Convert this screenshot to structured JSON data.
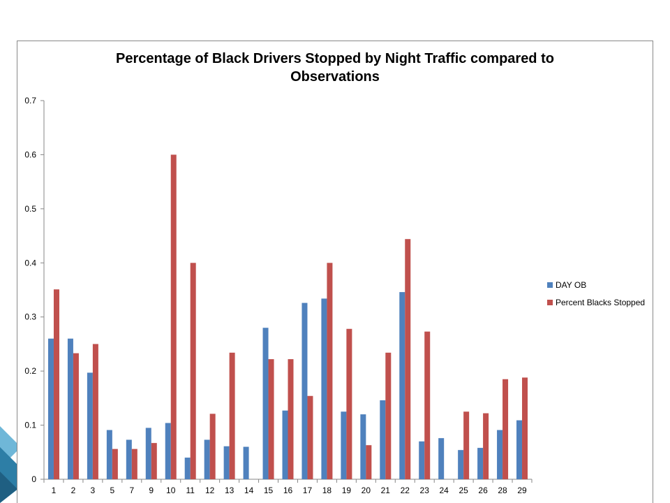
{
  "colors": {
    "day_ob": "#4f81bd",
    "percent_blacks_stopped": "#c0504d",
    "axis": "#868686",
    "deco_light": "#6fb7d8",
    "deco_dark": "#2d7ea6"
  },
  "chart_data": {
    "type": "bar",
    "title_lines": [
      "Percentage of Black Drivers Stopped by Night Traffic compared to",
      "Observations"
    ],
    "xlabel": "",
    "ylabel": "",
    "ylim": [
      0,
      0.7
    ],
    "yticks": [
      "0",
      "0.1",
      "0.2",
      "0.3",
      "0.4",
      "0.5",
      "0.6",
      "0.7"
    ],
    "grid": false,
    "legend_position": "right",
    "categories": [
      "1",
      "2",
      "3",
      "5",
      "7",
      "9",
      "10",
      "11",
      "12",
      "13",
      "14",
      "15",
      "16",
      "17",
      "18",
      "19",
      "20",
      "21",
      "22",
      "23",
      "24",
      "25",
      "26",
      "28",
      "29"
    ],
    "series": [
      {
        "name": "DAY OB",
        "color": "#4f81bd",
        "values": [
          0.26,
          0.26,
          0.197,
          0.091,
          0.073,
          0.095,
          0.104,
          0.04,
          0.073,
          0.061,
          0.06,
          0.28,
          0.127,
          0.326,
          0.334,
          0.125,
          0.12,
          0.146,
          0.346,
          0.07,
          0.076,
          0.054,
          0.058,
          0.091,
          0.109
        ]
      },
      {
        "name": "Percent Blacks Stopped",
        "color": "#c0504d",
        "values": [
          0.351,
          0.233,
          0.25,
          0.056,
          0.056,
          0.067,
          0.6,
          0.4,
          0.121,
          0.234,
          0,
          0.222,
          0.222,
          0.154,
          0.4,
          0.278,
          0.063,
          0.234,
          0.444,
          0.273,
          0,
          0.125,
          0.122,
          0.185,
          0.188
        ]
      }
    ]
  }
}
